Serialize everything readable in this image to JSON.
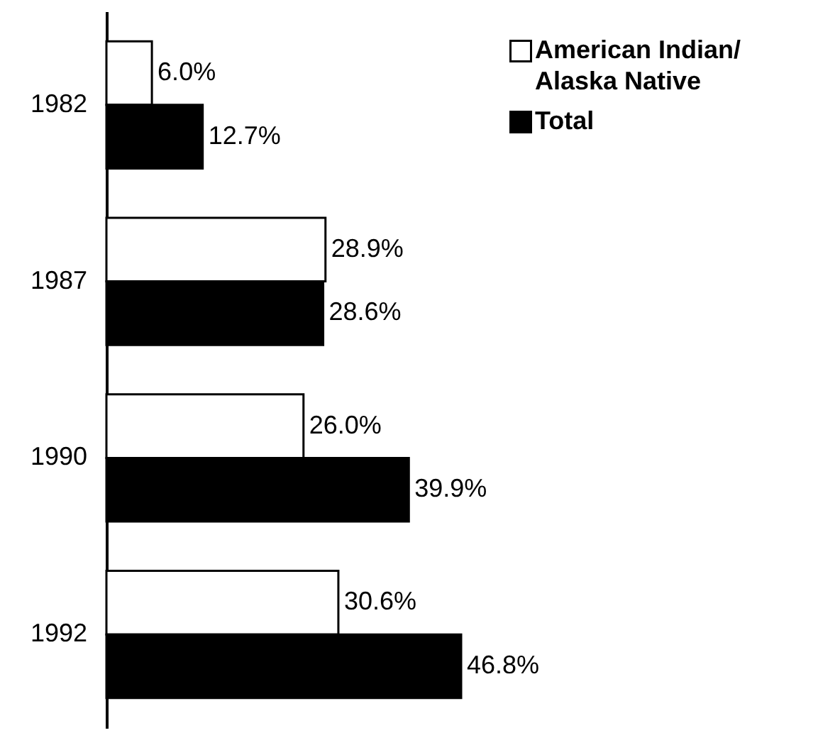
{
  "chart_data": {
    "type": "bar",
    "orientation": "horizontal",
    "categories": [
      "1982",
      "1987",
      "1990",
      "1992"
    ],
    "series": [
      {
        "name": "American Indian/ Alaska Native",
        "color": "#ffffff",
        "values": [
          6.0,
          28.9,
          26.0,
          30.6
        ],
        "value_labels": [
          "6.0%",
          "28.9%",
          "26.0%",
          "30.6%"
        ]
      },
      {
        "name": "Total",
        "color": "#000000",
        "values": [
          12.7,
          28.6,
          39.9,
          46.8
        ],
        "value_labels": [
          "12.7%",
          "28.6%",
          "39.9%",
          "46.8%"
        ]
      }
    ],
    "grid": false,
    "legend": "top right",
    "tick_labels": "y"
  }
}
